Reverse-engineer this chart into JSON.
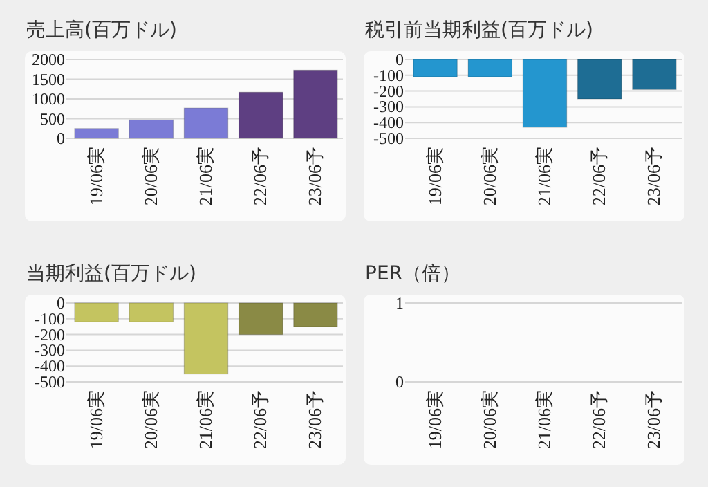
{
  "chart_data": [
    {
      "type": "bar",
      "title": "売上高(百万ドル)",
      "categories": [
        "19/06実",
        "20/06実",
        "21/06実",
        "22/06予",
        "23/06予"
      ],
      "values": [
        250,
        470,
        770,
        1170,
        1730
      ],
      "colors": [
        "#7b7bd6",
        "#7b7bd6",
        "#7b7bd6",
        "#5e3f82",
        "#5e3f82"
      ],
      "ylim": [
        0,
        2000
      ],
      "yticks": [
        0,
        500,
        1000,
        1500,
        2000
      ],
      "grid": "y"
    },
    {
      "type": "bar",
      "title": "税引前当期利益(百万ドル)",
      "categories": [
        "19/06実",
        "20/06実",
        "21/06実",
        "22/06予",
        "23/06予"
      ],
      "values": [
        -110,
        -110,
        -430,
        -250,
        -190
      ],
      "colors": [
        "#2496cf",
        "#2496cf",
        "#2496cf",
        "#1e6d94",
        "#1e6d94"
      ],
      "ylim": [
        -500,
        0
      ],
      "yticks": [
        0,
        -100,
        -200,
        -300,
        -400,
        -500
      ],
      "grid": "y"
    },
    {
      "type": "bar",
      "title": "当期利益(百万ドル)",
      "categories": [
        "19/06実",
        "20/06実",
        "21/06実",
        "22/06予",
        "23/06予"
      ],
      "values": [
        -120,
        -120,
        -450,
        -200,
        -150
      ],
      "colors": [
        "#c4c460",
        "#c4c460",
        "#c4c460",
        "#8a8a45",
        "#8a8a45"
      ],
      "ylim": [
        -500,
        0
      ],
      "yticks": [
        0,
        -100,
        -200,
        -300,
        -400,
        -500
      ],
      "grid": "y"
    },
    {
      "type": "bar",
      "title": "PER（倍）",
      "categories": [
        "19/06実",
        "20/06実",
        "21/06実",
        "22/06予",
        "23/06予"
      ],
      "values": [
        null,
        null,
        null,
        null,
        null
      ],
      "ylim": [
        0,
        1
      ],
      "yticks": [
        0,
        1
      ],
      "grid": "y"
    }
  ]
}
